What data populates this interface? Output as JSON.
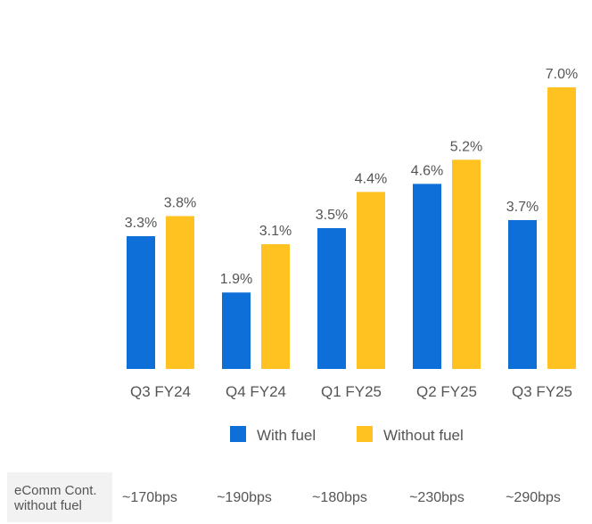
{
  "chart_data": {
    "type": "bar",
    "categories": [
      "Q3 FY24",
      "Q4 FY24",
      "Q1 FY25",
      "Q2 FY25",
      "Q3 FY25"
    ],
    "series": [
      {
        "name": "With fuel",
        "values": [
          3.3,
          1.9,
          3.5,
          4.6,
          3.7
        ],
        "labels": [
          "3.3%",
          "1.9%",
          "3.5%",
          "4.6%",
          "3.7%"
        ],
        "color": "#0f6fd8"
      },
      {
        "name": "Without fuel",
        "values": [
          3.8,
          3.1,
          4.4,
          5.2,
          7.0
        ],
        "labels": [
          "3.8%",
          "3.1%",
          "4.4%",
          "5.2%",
          "7.0%"
        ],
        "color": "#ffc220"
      }
    ],
    "ylim": [
      0,
      7.0
    ],
    "grid": false,
    "legend": "bottom-center"
  },
  "footer": {
    "label": "eComm Cont.\nwithout fuel",
    "values": [
      "~170bps",
      "~190bps",
      "~180bps",
      "~230bps",
      "~290bps"
    ]
  }
}
